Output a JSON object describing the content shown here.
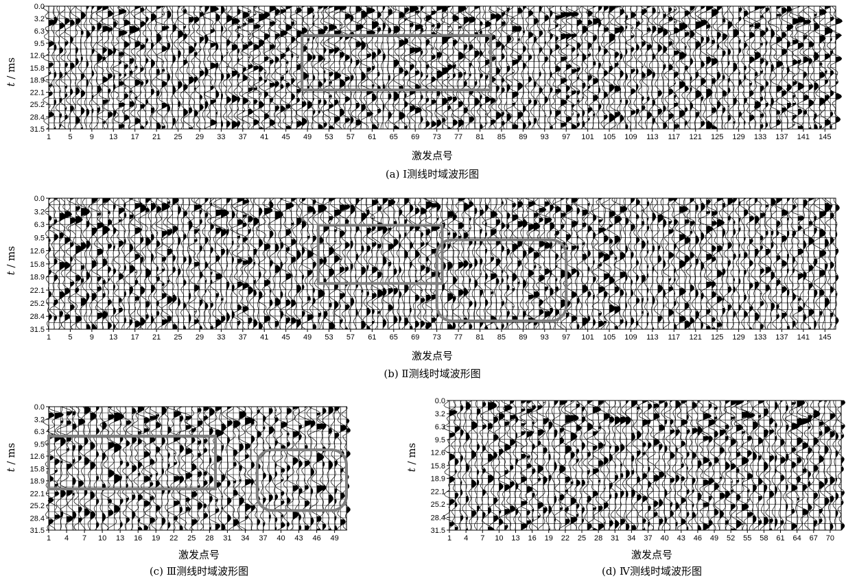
{
  "chart_data": [
    {
      "panel_id": "a",
      "type": "line",
      "subtype": "seismic-wiggle-trace",
      "title": "(a)  Ⅰ测线时域波形图",
      "xlabel": "激发点号",
      "ylabel_var": "t",
      "ylabel_unit": " / ms",
      "y_ticks": [
        0.0,
        3.2,
        6.3,
        9.5,
        12.6,
        15.8,
        18.9,
        22.1,
        25.2,
        28.4,
        31.5
      ],
      "y_tick_labels": [
        "0.0",
        "3.2",
        "6.3",
        "9.5",
        "12.6",
        "15.8",
        "18.9",
        "22.1",
        "25.2",
        "28.4",
        "31.5"
      ],
      "ylim": [
        0,
        31.5
      ],
      "y_inverted": true,
      "xlim": [
        1,
        147
      ],
      "x_tick_labels": [
        "1",
        "5",
        "9",
        "13",
        "17",
        "21",
        "25",
        "29",
        "33",
        "37",
        "41",
        "45",
        "49",
        "53",
        "57",
        "61",
        "65",
        "69",
        "73",
        "77",
        "81",
        "85",
        "89",
        "93",
        "97",
        "101",
        "105",
        "109",
        "113",
        "117",
        "121",
        "125",
        "129",
        "133",
        "137",
        "141",
        "145"
      ],
      "trace_count": 147,
      "grid": true,
      "annotations": [
        {
          "shape": "rectangle",
          "x_range": [
            48,
            83
          ],
          "t_range": [
            7.5,
            21.5
          ],
          "color": "#7f7f7f"
        }
      ]
    },
    {
      "panel_id": "b",
      "type": "line",
      "subtype": "seismic-wiggle-trace",
      "title": "(b)  Ⅱ测线时域波形图",
      "xlabel": "激发点号",
      "ylabel_var": "t",
      "ylabel_unit": " / ms",
      "y_ticks": [
        0.0,
        3.2,
        6.3,
        9.5,
        12.6,
        15.8,
        18.9,
        22.1,
        25.2,
        28.4,
        31.5
      ],
      "y_tick_labels": [
        "0.0",
        "3.2",
        "6.3",
        "9.5",
        "12.6",
        "15.8",
        "18.9",
        "22.1",
        "25.2",
        "28.4",
        "31.5"
      ],
      "ylim": [
        0,
        31.5
      ],
      "y_inverted": true,
      "xlim": [
        1,
        147
      ],
      "x_tick_labels": [
        "1",
        "5",
        "9",
        "13",
        "17",
        "21",
        "25",
        "29",
        "33",
        "37",
        "41",
        "45",
        "49",
        "53",
        "57",
        "61",
        "65",
        "69",
        "73",
        "77",
        "81",
        "85",
        "89",
        "93",
        "97",
        "101",
        "105",
        "109",
        "113",
        "117",
        "121",
        "125",
        "129",
        "133",
        "137",
        "141",
        "145"
      ],
      "trace_count": 147,
      "grid": true,
      "annotations": [
        {
          "shape": "rectangle",
          "x_range": [
            51,
            74
          ],
          "t_range": [
            6.5,
            20.5
          ],
          "color": "#7f7f7f"
        },
        {
          "shape": "rounded-region",
          "x_range": [
            73,
            97
          ],
          "t_range": [
            10.0,
            29.5
          ],
          "color": "#7f7f7f"
        }
      ]
    },
    {
      "panel_id": "c",
      "type": "line",
      "subtype": "seismic-wiggle-trace",
      "title": "(c)  Ⅲ测线时域波形图",
      "xlabel": "激发点号",
      "ylabel_var": "t",
      "ylabel_unit": " / ms",
      "y_ticks": [
        0.0,
        3.2,
        6.3,
        9.5,
        12.6,
        15.8,
        18.9,
        22.1,
        25.2,
        28.4,
        31.5
      ],
      "y_tick_labels": [
        "0.0",
        "3.2",
        "6.3",
        "9.5",
        "12.6",
        "15.8",
        "18.9",
        "22.1",
        "25.2",
        "28.4",
        "31.5"
      ],
      "ylim": [
        0,
        31.5
      ],
      "y_inverted": true,
      "xlim": [
        1,
        51
      ],
      "x_tick_labels": [
        "1",
        "4",
        "7",
        "10",
        "13",
        "16",
        "19",
        "22",
        "25",
        "28",
        "31",
        "34",
        "37",
        "40",
        "43",
        "46",
        "49"
      ],
      "trace_count": 51,
      "grid": true,
      "annotations": [
        {
          "shape": "rectangle",
          "x_range": [
            1,
            29
          ],
          "t_range": [
            7.5,
            21.0
          ],
          "color": "#7f7f7f"
        },
        {
          "shape": "rounded-region",
          "x_range": [
            36,
            51
          ],
          "t_range": [
            11.0,
            26.5
          ],
          "color": "#7f7f7f"
        }
      ]
    },
    {
      "panel_id": "d",
      "type": "line",
      "subtype": "seismic-wiggle-trace",
      "title": "(d)  Ⅳ测线时域波形图",
      "xlabel": "激发点号",
      "ylabel_var": "t",
      "ylabel_unit": " / ms",
      "y_ticks": [
        0.0,
        3.2,
        6.3,
        9.5,
        12.6,
        15.8,
        18.9,
        22.1,
        25.2,
        28.4,
        31.5
      ],
      "y_tick_labels": [
        "0.0",
        "3.2",
        "6.3",
        "9.5",
        "12.6",
        "15.8",
        "18.9",
        "22.1",
        "25.2",
        "28.4",
        "31.5"
      ],
      "ylim": [
        0,
        31.5
      ],
      "y_inverted": true,
      "xlim": [
        1,
        72
      ],
      "x_tick_labels": [
        "1",
        "4",
        "7",
        "10",
        "13",
        "16",
        "19",
        "22",
        "25",
        "28",
        "31",
        "34",
        "37",
        "40",
        "43",
        "46",
        "49",
        "52",
        "55",
        "58",
        "61",
        "64",
        "67",
        "70"
      ],
      "trace_count": 72,
      "grid": true,
      "annotations": []
    }
  ]
}
